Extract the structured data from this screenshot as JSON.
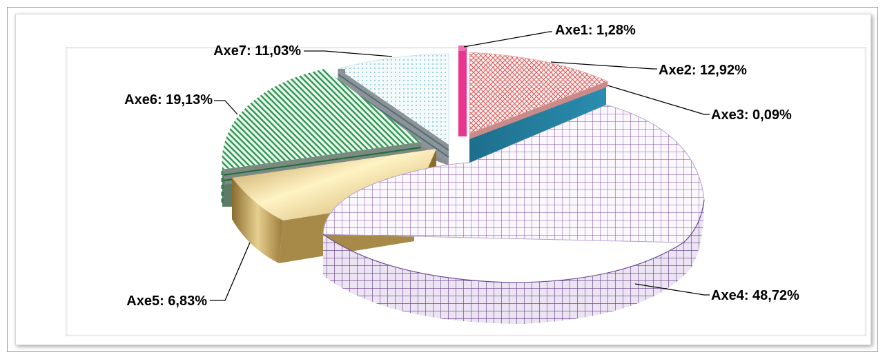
{
  "chart_data": {
    "type": "pie",
    "title": "",
    "categories": [
      "Axe1",
      "Axe2",
      "Axe3",
      "Axe4",
      "Axe5",
      "Axe6",
      "Axe7"
    ],
    "values": [
      1.28,
      12.92,
      0.09,
      48.72,
      6.83,
      19.13,
      11.03
    ],
    "labels": [
      "Axe1: 1,28%",
      "Axe2: 12,92%",
      "Axe3: 0,09%",
      "Axe4: 48,72%",
      "Axe5: 6,83%",
      "Axe6: 19,13%",
      "Axe7: 11,03%"
    ],
    "colors": [
      "#e8368f",
      "#e07a7a",
      "#1f7fa0",
      "#9b6fbf",
      "#c9a55a",
      "#3aa05a",
      "#7fb7c8"
    ],
    "legend": "none",
    "style": "3d-exploded"
  }
}
